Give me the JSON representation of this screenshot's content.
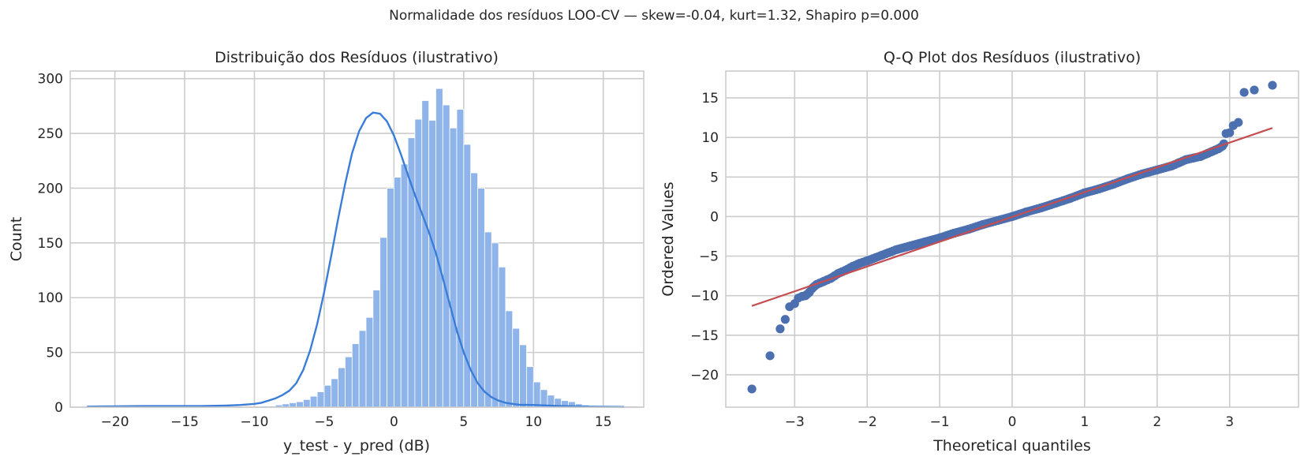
{
  "figure": {
    "suptitle": "Normalidade dos resíduos LOO-CV — skew=-0.04, kurt=1.32, Shapiro p=0.000"
  },
  "colors": {
    "hist_fill": "#8fb4ea",
    "hist_edge": "#ffffff",
    "kde_line": "#3a7dd8",
    "qq_points": "#4c6fb0",
    "qq_line": "#c44e52",
    "grid": "#cccccc",
    "text": "#262626"
  },
  "chart_data": [
    {
      "type": "bar",
      "title": "Distribuição dos Resíduos (ilustrativo)",
      "xlabel": "y_test - y_pred (dB)",
      "ylabel": "Count",
      "xlim": [
        -23.2,
        17.9
      ],
      "ylim": [
        0,
        307
      ],
      "xticks": [
        -20,
        -15,
        -10,
        -5,
        0,
        5,
        10,
        15
      ],
      "xtick_labels": [
        "−20",
        "−15",
        "−10",
        "−5",
        "0",
        "5",
        "10",
        "15"
      ],
      "yticks": [
        0,
        50,
        100,
        150,
        200,
        250,
        300
      ],
      "ytick_labels": [
        "0",
        "50",
        "100",
        "150",
        "200",
        "250",
        "300"
      ],
      "grid": true,
      "bin_start": -22.0,
      "bin_width": 0.5,
      "counts": [
        1,
        0,
        0,
        0,
        0,
        0,
        0,
        0,
        0,
        1,
        0,
        0,
        0,
        0,
        0,
        0,
        0,
        0,
        0,
        0,
        0,
        0,
        0,
        0,
        0,
        1,
        1,
        2,
        3,
        4,
        5,
        7,
        10,
        14,
        20,
        26,
        36,
        46,
        58,
        70,
        82,
        107,
        155,
        200,
        210,
        222,
        246,
        263,
        280,
        262,
        291,
        276,
        255,
        272,
        240,
        214,
        200,
        160,
        150,
        128,
        88,
        72,
        57,
        37,
        23,
        16,
        11,
        8,
        6,
        5,
        3,
        2,
        1,
        0,
        1,
        0,
        0,
        1,
        1
      ],
      "kde": {
        "name": "",
        "x": [
          -22,
          -20,
          -18,
          -16,
          -14,
          -12,
          -11,
          -10,
          -9.5,
          -9,
          -8.5,
          -8,
          -7.5,
          -7,
          -6.5,
          -6,
          -5.5,
          -5,
          -4.5,
          -4,
          -3.5,
          -3,
          -2.5,
          -2,
          -1.5,
          -1,
          -0.5,
          0,
          0.5,
          1,
          1.5,
          2,
          2.5,
          3,
          3.5,
          4,
          4.5,
          5,
          5.5,
          6,
          6.5,
          7,
          7.5,
          8,
          8.5,
          9,
          10,
          11,
          12,
          14,
          16.5
        ],
        "y": [
          0.5,
          0.8,
          1,
          1,
          1,
          1.5,
          2,
          3,
          4,
          6,
          8,
          11,
          15,
          22,
          34,
          52,
          76,
          105,
          138,
          172,
          204,
          232,
          252,
          264,
          269,
          268,
          261,
          248,
          231,
          212,
          194,
          177,
          160,
          141,
          118,
          94,
          70,
          50,
          34,
          22,
          14,
          9,
          6,
          4,
          3,
          2.2,
          2,
          1.5,
          1,
          0.5,
          0.2
        ]
      }
    },
    {
      "type": "scatter",
      "title": "Q-Q Plot dos Resíduos (ilustrativo)",
      "xlabel": "Theoretical quantiles",
      "ylabel": "Ordered Values",
      "xlim": [
        -3.95,
        3.95
      ],
      "ylim": [
        -24.1,
        18.4
      ],
      "xticks": [
        -3,
        -2,
        -1,
        0,
        1,
        2,
        3
      ],
      "xtick_labels": [
        "−3",
        "−2",
        "−1",
        "0",
        "1",
        "2",
        "3"
      ],
      "yticks": [
        -20,
        -15,
        -10,
        -5,
        0,
        5,
        10,
        15
      ],
      "ytick_labels": [
        "−20",
        "−15",
        "−10",
        "−5",
        "0",
        "5",
        "10",
        "15"
      ],
      "grid": true,
      "fit_line": {
        "name": "",
        "x": [
          -3.59,
          3.59
        ],
        "y": [
          -11.3,
          11.2
        ]
      },
      "points": {
        "name": "",
        "x": [
          -3.59,
          -3.34,
          -3.2,
          -3.13,
          -3.07,
          -3.0,
          -2.95,
          -2.9,
          -2.85,
          -2.8,
          -2.75,
          -2.7,
          -2.65,
          -2.6,
          -2.55,
          -2.5,
          -2.45,
          -2.4,
          -2.35,
          -2.3,
          -2.2,
          -2.1,
          -2.0,
          -1.8,
          -1.6,
          -1.4,
          -1.2,
          -1.0,
          -0.8,
          -0.6,
          -0.4,
          -0.2,
          0.0,
          0.2,
          0.4,
          0.6,
          0.8,
          1.0,
          1.2,
          1.4,
          1.6,
          1.8,
          2.0,
          2.2,
          2.3,
          2.4,
          2.5,
          2.6,
          2.7,
          2.75,
          2.8,
          2.85,
          2.9,
          2.92,
          2.95,
          3.0,
          3.05,
          3.12,
          3.2,
          3.34,
          3.59
        ],
        "y": [
          -21.8,
          -17.6,
          -14.2,
          -13.0,
          -11.4,
          -11.0,
          -10.3,
          -10.1,
          -10.0,
          -9.6,
          -9.0,
          -8.6,
          -8.4,
          -8.2,
          -8.0,
          -7.8,
          -7.5,
          -7.2,
          -7.0,
          -6.8,
          -6.3,
          -5.9,
          -5.6,
          -4.9,
          -4.2,
          -3.7,
          -3.2,
          -2.7,
          -2.1,
          -1.6,
          -1.0,
          -0.5,
          0.0,
          0.6,
          1.1,
          1.7,
          2.3,
          3.0,
          3.5,
          4.1,
          4.8,
          5.4,
          5.9,
          6.4,
          6.8,
          7.2,
          7.4,
          7.6,
          8.0,
          8.2,
          8.4,
          8.6,
          8.9,
          9.2,
          10.5,
          10.6,
          11.5,
          11.9,
          15.7,
          16.0,
          16.6
        ]
      }
    }
  ]
}
